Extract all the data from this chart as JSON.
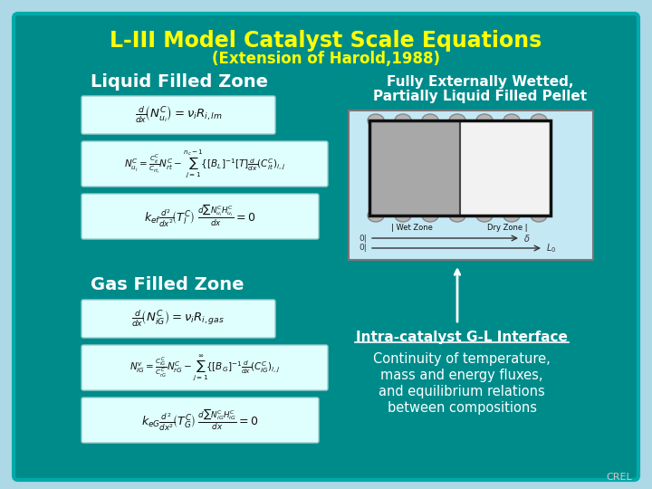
{
  "title": "L-III Model Catalyst Scale Equations",
  "subtitle": "(Extension of Harold,1988)",
  "title_color": "#FFFF00",
  "subtitle_color": "#FFFF00",
  "bg_color": "#008B8B",
  "outer_bg": "#ADD8E6",
  "text_color": "#FFFFFF",
  "section_left_title1": "Liquid Filled Zone",
  "section_left_title2": "Gas Filled Zone",
  "right_title1": "Fully Externally Wetted,",
  "right_title2": "Partially Liquid Filled Pellet",
  "interface_title": "Intra-catalyst G-L Interface",
  "interface_lines": [
    "Continuity of temperature,",
    "mass and energy fluxes,",
    "and equilibrium relations",
    "between compositions"
  ],
  "crel_text": "CREL",
  "eq_box_color": "#DFFFFF",
  "eq_box_edge": "#99CCCC"
}
